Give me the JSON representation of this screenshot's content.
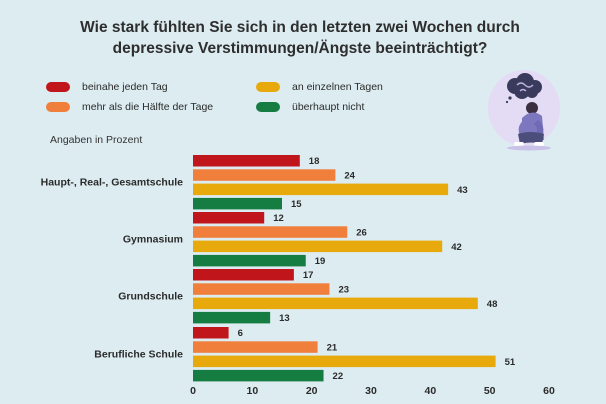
{
  "title": {
    "line1": "Wie stark fühlten Sie sich in den letzten zwei Wochen durch",
    "line2": "depressive Verstimmungen/Ängste beeinträchtigt?"
  },
  "legend": [
    {
      "label": "beinahe jeden Tag",
      "color": "#c0161b"
    },
    {
      "label": "mehr als die Hälfte der Tage",
      "color": "#f07f3c"
    },
    {
      "label": "an einzelnen Tagen",
      "color": "#e8a90c"
    },
    {
      "label": "überhaupt nicht",
      "color": "#157d42"
    }
  ],
  "unit_note": "Angaben in Prozent",
  "illustration": "person-with-anxiety-cloud-illustration",
  "chart_data": {
    "type": "bar",
    "orientation": "horizontal",
    "categories": [
      "Haupt-, Real-, Gesamtschule",
      "Gymnasium",
      "Grundschule",
      "Berufliche Schule"
    ],
    "series": [
      {
        "name": "beinahe jeden Tag",
        "color": "#c0161b",
        "values": [
          18,
          12,
          17,
          6
        ]
      },
      {
        "name": "mehr als die Hälfte der Tage",
        "color": "#f07f3c",
        "values": [
          24,
          26,
          23,
          21
        ]
      },
      {
        "name": "an einzelnen Tagen",
        "color": "#e8a90c",
        "values": [
          43,
          42,
          48,
          51
        ]
      },
      {
        "name": "überhaupt nicht",
        "color": "#157d42",
        "values": [
          15,
          19,
          13,
          22
        ]
      }
    ],
    "xlim": [
      0,
      60
    ],
    "xticks": [
      0,
      10,
      20,
      30,
      40,
      50,
      60
    ],
    "xlabel": "",
    "ylabel": "",
    "grid": false,
    "data_labels": true,
    "legend_position": "top"
  }
}
